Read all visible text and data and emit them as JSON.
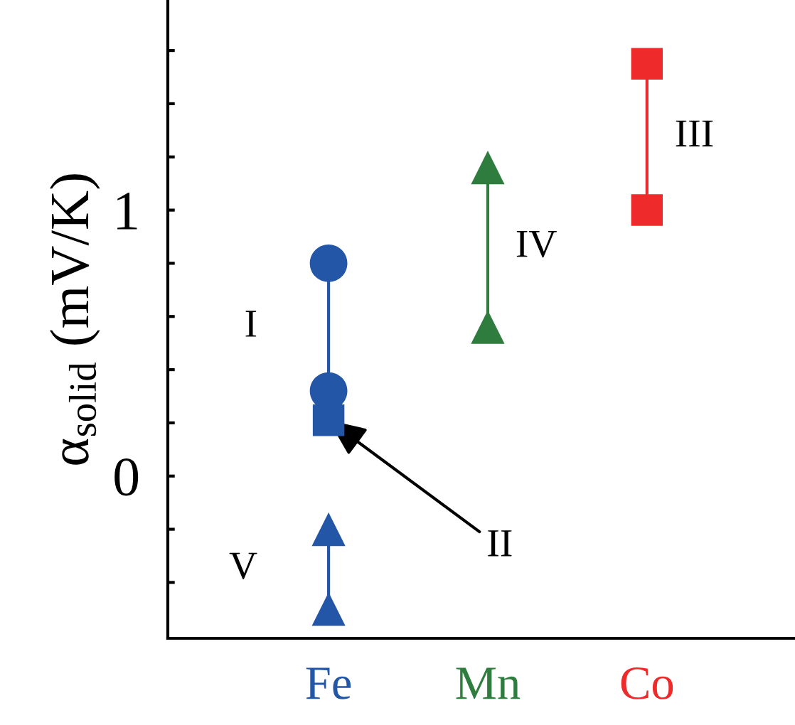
{
  "chart_data": {
    "type": "line",
    "ylabel": "α$_{solid}$ (mV/K)",
    "categories": [
      "Fe",
      "Mn",
      "Co"
    ],
    "colors": [
      "#2356a6",
      "#2e7d3e",
      "#ee2a2a"
    ],
    "ylim": [
      -0.61,
      1.79
    ],
    "yticks": [
      {
        "value": -0.4,
        "label": null
      },
      {
        "value": -0.2,
        "label": null
      },
      0,
      {
        "value": 0.2,
        "label": null
      },
      {
        "value": 0.4,
        "label": null
      },
      {
        "value": 0.6,
        "label": null
      },
      {
        "value": 0.8,
        "label": null
      },
      1,
      {
        "value": 1.2,
        "label": null
      },
      {
        "value": 1.4,
        "label": null
      },
      {
        "value": 1.6,
        "label": null
      }
    ],
    "grid": false,
    "legend": false,
    "series": [
      {
        "name": "I",
        "color": "#2356a6",
        "marker": "circle",
        "x": [
          "Fe",
          "Fe"
        ],
        "values": [
          0.8,
          0.32
        ]
      },
      {
        "color": "#2356a6",
        "marker": "square",
        "x": [
          "Fe"
        ],
        "values": [
          0.21
        ]
      },
      {
        "name": "V",
        "color": "#2356a6",
        "marker": "triangle",
        "x": [
          "Fe",
          "Fe"
        ],
        "values": [
          -0.2,
          -0.5
        ]
      },
      {
        "name": "IV",
        "color": "#2e7d3e",
        "marker": "triangle",
        "x": [
          "Mn",
          "Mn"
        ],
        "values": [
          1.16,
          0.56
        ]
      },
      {
        "name": "III",
        "color": "#ee2a2a",
        "marker": "square",
        "x": [
          "Co",
          "Co"
        ],
        "values": [
          1.55,
          1.0
        ]
      }
    ],
    "annotations": [
      {
        "text": "II",
        "x": "Fe",
        "y": 0.21
      }
    ]
  }
}
